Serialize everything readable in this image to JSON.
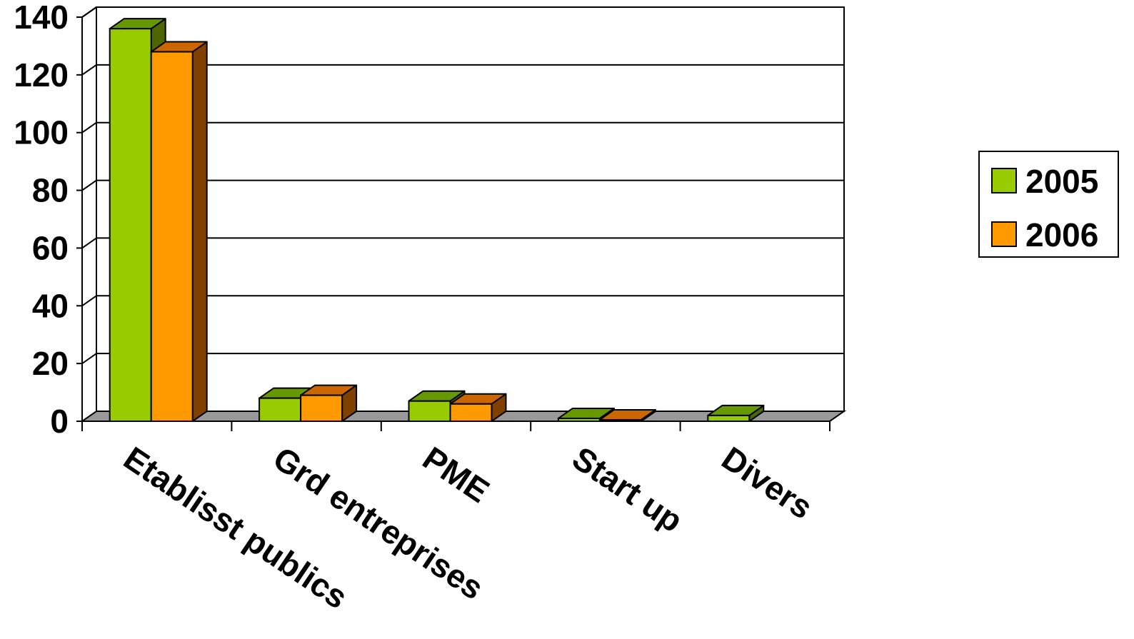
{
  "chart_data": {
    "type": "bar",
    "style": "3d-clustered",
    "categories": [
      "Etablisst publics",
      "Grd entreprises",
      "PME",
      "Start up",
      "Divers"
    ],
    "series": [
      {
        "name": "2005",
        "values": [
          136,
          8,
          7,
          1,
          2
        ],
        "color": "#99cc00",
        "top_color": "#669900",
        "side_color": "#4d6600"
      },
      {
        "name": "2006",
        "values": [
          128,
          9,
          6,
          0.5,
          0
        ],
        "color": "#ff9900",
        "top_color": "#cc6600",
        "side_color": "#804000"
      }
    ],
    "ylim": [
      0,
      140
    ],
    "yticks": [
      0,
      20,
      40,
      60,
      80,
      100,
      120,
      140
    ],
    "grid": true,
    "legend_position": "right",
    "colors": {
      "floor": "#999999",
      "gridline": "#000000",
      "axis": "#000000"
    },
    "title": "",
    "xlabel": "",
    "ylabel": ""
  }
}
